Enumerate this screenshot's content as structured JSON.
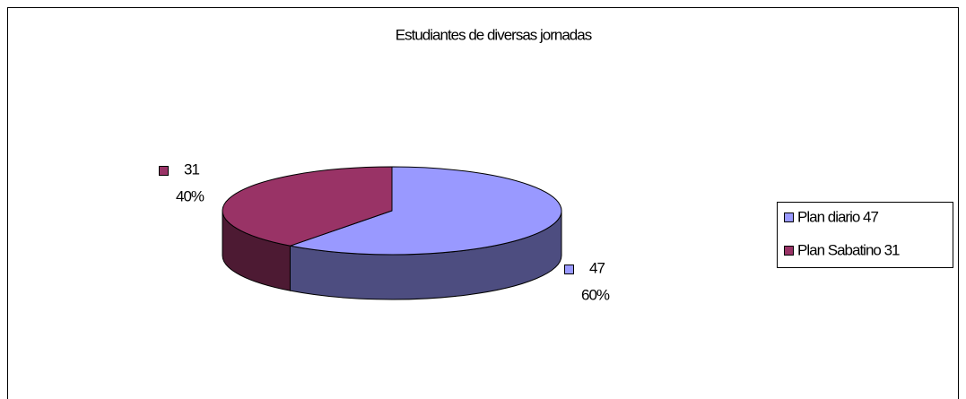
{
  "chart_data": {
    "type": "pie3d",
    "title": "Estudiantes de diversas jornadas",
    "categories": [
      "Plan diario 47",
      "Plan Sabatino 31"
    ],
    "values": [
      47,
      31
    ],
    "percent_labels": [
      "60%",
      "40%"
    ],
    "colors": [
      "#9999ff",
      "#993366"
    ],
    "side_colors": [
      "#4d4d80",
      "#4d1a33"
    ],
    "legend": "right"
  }
}
